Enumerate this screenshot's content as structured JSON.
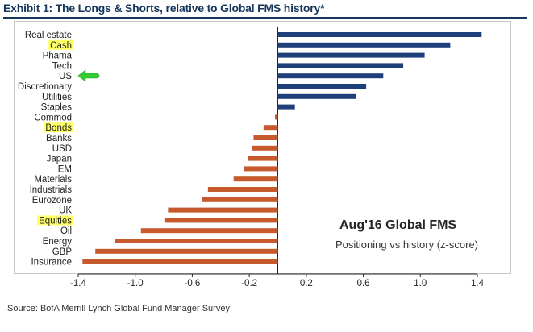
{
  "exhibit_title": "Exhibit 1: The Longs & Shorts, relative to Global FMS history*",
  "source": "Source: BofA Merrill Lynch Global Fund Manager Survey",
  "legend": {
    "title": "Aug'16 Global FMS",
    "subtitle": "Positioning vs history (z-score)"
  },
  "colors": {
    "positive_bar": "#1f3f7a",
    "negative_bar": "#c65a2c",
    "highlight": "#ffff66",
    "arrow": "#33cc33",
    "title": "#16365c"
  },
  "annotations": {
    "arrow_icon": "green-arrow-pointing-left",
    "arrow_target": "US"
  },
  "chart_data": {
    "type": "bar",
    "orientation": "horizontal",
    "title": "Aug'16 Global FMS",
    "subtitle": "Positioning vs history (z-score)",
    "xlabel": "",
    "ylabel": "",
    "xlim": [
      -1.4,
      1.4
    ],
    "xticks": [
      -1.4,
      -1.0,
      -0.6,
      -0.2,
      0.2,
      0.6,
      1.0,
      1.4
    ],
    "xtick_labels": [
      "-1.4",
      "-1.0",
      "-0.6",
      "-0.2",
      "0.2",
      "0.6",
      "1.0",
      "1.4"
    ],
    "grid": false,
    "legend_position": "bottom-right",
    "categories": [
      "Real estate",
      "Cash",
      "Phama",
      "Tech",
      "US",
      "Discretionary",
      "Utilities",
      "Staples",
      "Commod",
      "Bonds",
      "Banks",
      "USD",
      "Japan",
      "EM",
      "Materials",
      "Industrials",
      "Eurozone",
      "UK",
      "Equities",
      "Oil",
      "Energy",
      "GBP",
      "Insurance"
    ],
    "values": [
      1.43,
      1.21,
      1.03,
      0.88,
      0.74,
      0.62,
      0.55,
      0.12,
      -0.02,
      -0.1,
      -0.17,
      -0.18,
      -0.21,
      -0.24,
      -0.31,
      -0.49,
      -0.53,
      -0.77,
      -0.79,
      -0.96,
      -1.14,
      -1.28,
      -1.37
    ],
    "highlighted": [
      "Cash",
      "Bonds",
      "Equities"
    ]
  }
}
